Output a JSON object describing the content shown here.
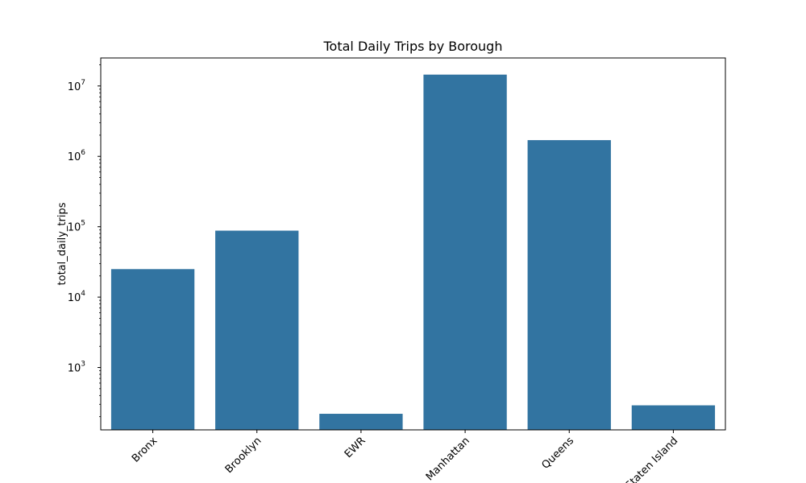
{
  "chart_data": {
    "type": "bar",
    "title": "Total Daily Trips by Borough",
    "xlabel": "",
    "ylabel": "total_daily_trips",
    "yscale": "log",
    "ylim": [
      130,
      25000000
    ],
    "categories": [
      "Bronx",
      "Brooklyn",
      "EWR",
      "Manhattan",
      "Queens",
      "Staten Island"
    ],
    "values": [
      25000,
      88000,
      220,
      14500000,
      1700000,
      290
    ],
    "yticks": [
      {
        "base": "10",
        "exp": "3",
        "value": 1000
      },
      {
        "base": "10",
        "exp": "4",
        "value": 10000
      },
      {
        "base": "10",
        "exp": "5",
        "value": 100000
      },
      {
        "base": "10",
        "exp": "6",
        "value": 1000000
      },
      {
        "base": "10",
        "exp": "7",
        "value": 10000000
      }
    ],
    "bar_color": "#3274a1",
    "grid": false
  }
}
